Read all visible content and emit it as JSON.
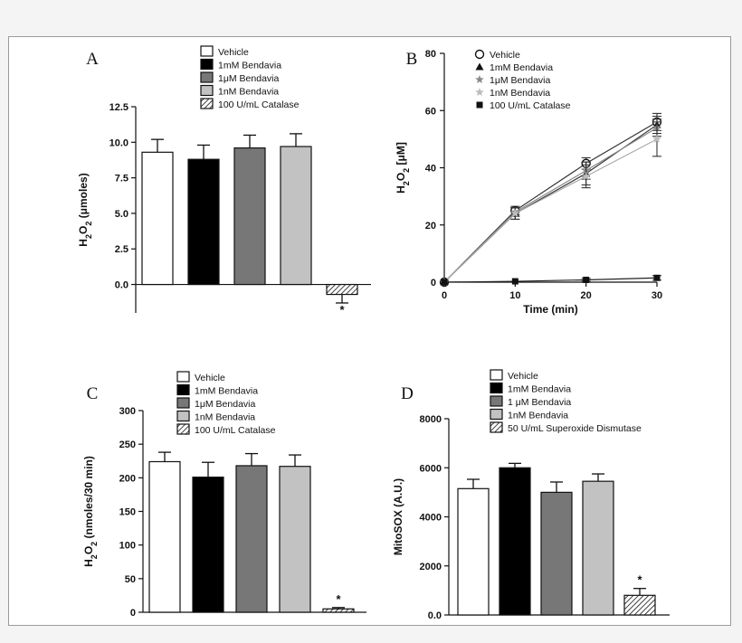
{
  "colors": {
    "Vehicle": "#ffffff",
    "1mM Bendavia": "#000000",
    "1μM Bendavia": "#777777",
    "1nM Bendavia": "#c2c2c2",
    "hatch": "#111111"
  },
  "chart_data": [
    {
      "panel": "A",
      "type": "bar",
      "ylabel": "H2O2 (μmoles)",
      "ylim": [
        -2.0,
        12.5
      ],
      "yticks": [
        "0.0",
        "2.5",
        "5.0",
        "7.5",
        "10.0",
        "12.5"
      ],
      "yticks_values": [
        0,
        2.5,
        5,
        7.5,
        10,
        12.5
      ],
      "legend": [
        "Vehicle",
        "1mM Bendavia",
        "1μM Bendavia",
        "1nM Bendavia",
        "100 U/mL Catalase"
      ],
      "legend_position": "top",
      "series": [
        {
          "name": "Vehicle",
          "value": 9.3,
          "error": 0.9
        },
        {
          "name": "1mM Bendavia",
          "value": 8.8,
          "error": 1.0
        },
        {
          "name": "1μM Bendavia",
          "value": 9.6,
          "error": 0.9
        },
        {
          "name": "1nM Bendavia",
          "value": 9.7,
          "error": 0.9
        },
        {
          "name": "100 U/mL Catalase",
          "value": -0.7,
          "error": 0.6,
          "hatched": true,
          "annotation": "*"
        }
      ]
    },
    {
      "panel": "B",
      "type": "line",
      "ylabel": "H2O2 [μM]",
      "xlabel": "Time (min)",
      "xlim": [
        0,
        30
      ],
      "ylim": [
        0,
        80
      ],
      "xticks": [
        "0",
        "10",
        "20",
        "30"
      ],
      "yticks": [
        "0",
        "20",
        "40",
        "60",
        "80"
      ],
      "x": [
        0,
        10,
        20,
        30
      ],
      "legend_position": "top-left",
      "series": [
        {
          "name": "Vehicle",
          "marker": "open-circle",
          "values": [
            0,
            25,
            41.5,
            56
          ],
          "errors": [
            0,
            1.5,
            2,
            3
          ]
        },
        {
          "name": "1mM Bendavia",
          "marker": "triangle",
          "values": [
            0,
            24,
            38,
            55
          ],
          "errors": [
            0,
            2,
            4,
            3
          ]
        },
        {
          "name": "1μM Bendavia",
          "marker": "star-gray",
          "values": [
            0,
            24.5,
            39,
            54
          ],
          "errors": [
            0,
            1.5,
            3,
            3
          ]
        },
        {
          "name": "1nM Bendavia",
          "marker": "star-light",
          "values": [
            0,
            24,
            37,
            50
          ],
          "errors": [
            0,
            2,
            4,
            6
          ]
        },
        {
          "name": "100 U/mL Catalase",
          "marker": "square",
          "values": [
            0,
            0.3,
            0.8,
            1.5
          ],
          "errors": [
            0,
            0.3,
            0.5,
            0.8
          ]
        }
      ]
    },
    {
      "panel": "C",
      "type": "bar",
      "ylabel": "H2O2 (nmoles/30 min)",
      "ylim": [
        0,
        300
      ],
      "yticks": [
        "0",
        "50",
        "100",
        "150",
        "200",
        "250",
        "300"
      ],
      "yticks_values": [
        0,
        50,
        100,
        150,
        200,
        250,
        300
      ],
      "legend": [
        "Vehicle",
        "1mM Bendavia",
        "1μM Bendavia",
        "1nM Bendavia",
        "100 U/mL Catalase"
      ],
      "legend_position": "top",
      "series": [
        {
          "name": "Vehicle",
          "value": 224,
          "error": 14
        },
        {
          "name": "1mM Bendavia",
          "value": 201,
          "error": 22
        },
        {
          "name": "1μM Bendavia",
          "value": 218,
          "error": 18
        },
        {
          "name": "1nM Bendavia",
          "value": 217,
          "error": 17
        },
        {
          "name": "100 U/mL Catalase",
          "value": 5,
          "error": 2,
          "hatched": true,
          "annotation": "*"
        }
      ]
    },
    {
      "panel": "D",
      "type": "bar",
      "ylabel": "MitoSOX (A.U.)",
      "ylim": [
        0,
        8000
      ],
      "yticks": [
        "0.0",
        "2000",
        "4000",
        "6000",
        "8000"
      ],
      "yticks_values": [
        0,
        2000,
        4000,
        6000,
        8000
      ],
      "legend": [
        "Vehicle",
        "1mM Bendavia",
        "1 μM Bendavia",
        "1nM Bendavia",
        "50 U/mL Superoxide Dismutase"
      ],
      "legend_position": "top",
      "series": [
        {
          "name": "Vehicle",
          "value": 5150,
          "error": 380
        },
        {
          "name": "1mM Bendavia",
          "value": 6000,
          "error": 180
        },
        {
          "name": "1 μM Bendavia",
          "value": 5000,
          "error": 420
        },
        {
          "name": "1nM Bendavia",
          "value": 5450,
          "error": 300
        },
        {
          "name": "50 U/mL Superoxide Dismutase",
          "value": 800,
          "error": 280,
          "hatched": true,
          "annotation": "*"
        }
      ]
    }
  ]
}
